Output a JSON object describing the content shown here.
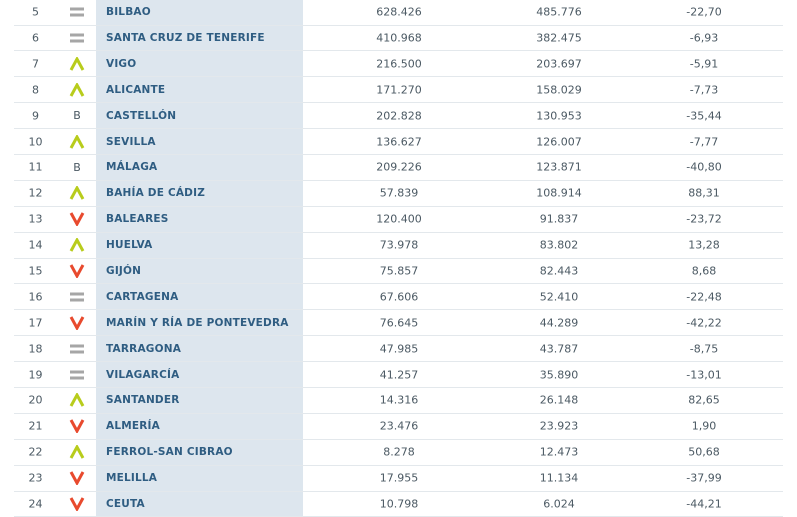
{
  "colors": {
    "up": "#b8cc1c",
    "down": "#e84a2e",
    "equal": "#a6a6a6",
    "name_bg": "#dde6ee",
    "name_text": "#2f5d82"
  },
  "rows": [
    {
      "rank": "5",
      "indicator": "equal",
      "name": "BILBAO",
      "v1": "628.426",
      "v2": "485.776",
      "v3": "-22,70"
    },
    {
      "rank": "6",
      "indicator": "equal",
      "name": "SANTA CRUZ DE TENERIFE",
      "v1": "410.968",
      "v2": "382.475",
      "v3": "-6,93"
    },
    {
      "rank": "7",
      "indicator": "up",
      "name": "VIGO",
      "v1": "216.500",
      "v2": "203.697",
      "v3": "-5,91"
    },
    {
      "rank": "8",
      "indicator": "up",
      "name": "ALICANTE",
      "v1": "171.270",
      "v2": "158.029",
      "v3": "-7,73"
    },
    {
      "rank": "9",
      "indicator": "B",
      "name": "CASTELLÓN",
      "v1": "202.828",
      "v2": "130.953",
      "v3": "-35,44"
    },
    {
      "rank": "10",
      "indicator": "up",
      "name": "SEVILLA",
      "v1": "136.627",
      "v2": "126.007",
      "v3": "-7,77"
    },
    {
      "rank": "11",
      "indicator": "B",
      "name": "MÁLAGA",
      "v1": "209.226",
      "v2": "123.871",
      "v3": "-40,80"
    },
    {
      "rank": "12",
      "indicator": "up",
      "name": "BAHÍA DE CÁDIZ",
      "v1": "57.839",
      "v2": "108.914",
      "v3": "88,31"
    },
    {
      "rank": "13",
      "indicator": "down",
      "name": "BALEARES",
      "v1": "120.400",
      "v2": "91.837",
      "v3": "-23,72"
    },
    {
      "rank": "14",
      "indicator": "up",
      "name": "HUELVA",
      "v1": "73.978",
      "v2": "83.802",
      "v3": "13,28"
    },
    {
      "rank": "15",
      "indicator": "down",
      "name": "GIJÓN",
      "v1": "75.857",
      "v2": "82.443",
      "v3": "8,68"
    },
    {
      "rank": "16",
      "indicator": "equal",
      "name": "CARTAGENA",
      "v1": "67.606",
      "v2": "52.410",
      "v3": "-22,48"
    },
    {
      "rank": "17",
      "indicator": "down",
      "name": "MARÍN Y RÍA DE PONTEVEDRA",
      "v1": "76.645",
      "v2": "44.289",
      "v3": "-42,22"
    },
    {
      "rank": "18",
      "indicator": "equal",
      "name": "TARRAGONA",
      "v1": "47.985",
      "v2": "43.787",
      "v3": "-8,75"
    },
    {
      "rank": "19",
      "indicator": "equal",
      "name": "VILAGARCÍA",
      "v1": "41.257",
      "v2": "35.890",
      "v3": "-13,01"
    },
    {
      "rank": "20",
      "indicator": "up",
      "name": "SANTANDER",
      "v1": "14.316",
      "v2": "26.148",
      "v3": "82,65"
    },
    {
      "rank": "21",
      "indicator": "down",
      "name": "ALMERÍA",
      "v1": "23.476",
      "v2": "23.923",
      "v3": "1,90"
    },
    {
      "rank": "22",
      "indicator": "up",
      "name": "FERROL-SAN CIBRAO",
      "v1": "8.278",
      "v2": "12.473",
      "v3": "50,68"
    },
    {
      "rank": "23",
      "indicator": "down",
      "name": "MELILLA",
      "v1": "17.955",
      "v2": "11.134",
      "v3": "-37,99"
    },
    {
      "rank": "24",
      "indicator": "down",
      "name": "CEUTA",
      "v1": "10.798",
      "v2": "6.024",
      "v3": "-44,21"
    }
  ]
}
